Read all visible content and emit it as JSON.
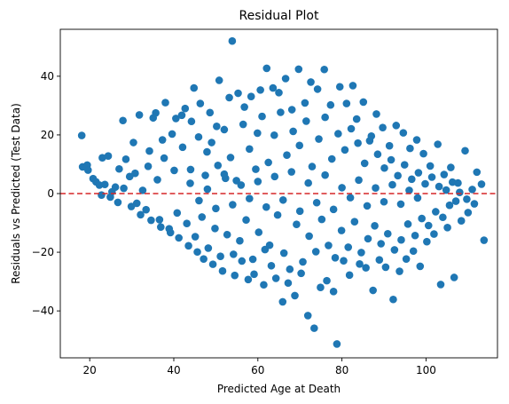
{
  "chart_data": {
    "type": "scatter",
    "title": "Residual Plot",
    "xlabel": "Predicted Age at Death",
    "ylabel": "Residuals vs Predicted (Test Data)",
    "xlim": [
      13,
      117
    ],
    "ylim": [
      -56,
      56
    ],
    "xticks": [
      20,
      40,
      60,
      80,
      100
    ],
    "yticks": [
      -40,
      -20,
      0,
      20,
      40
    ],
    "grid": false,
    "marker_color": "#1f77b4",
    "reference_line": {
      "y": 0,
      "color": "#d62728",
      "style": "dashed"
    },
    "series": [
      {
        "points": [
          [
            18.1,
            19.8
          ],
          [
            18.3,
            9.1
          ],
          [
            19.4,
            9.7
          ],
          [
            19.6,
            8.0
          ],
          [
            20.8,
            5.1
          ],
          [
            21.5,
            4.0
          ],
          [
            22.3,
            2.9
          ],
          [
            23.0,
            12.2
          ],
          [
            23.6,
            3.1
          ],
          [
            24.4,
            12.8
          ],
          [
            25.3,
            0.6
          ],
          [
            26.1,
            2.2
          ],
          [
            27.0,
            8.4
          ],
          [
            27.9,
            24.9
          ],
          [
            28.6,
            11.7
          ],
          [
            29.5,
            5.8
          ],
          [
            30.4,
            17.4
          ],
          [
            31.2,
            -3.3
          ],
          [
            31.8,
            26.8
          ],
          [
            32.6,
            1.1
          ],
          [
            33.4,
            -5.5
          ],
          [
            34.2,
            14.5
          ],
          [
            35.1,
            25.8
          ],
          [
            35.7,
            27.5
          ],
          [
            36.6,
            -8.9
          ],
          [
            37.3,
            18.3
          ],
          [
            38.0,
            31.0
          ],
          [
            38.9,
            -12.0
          ],
          [
            39.6,
            20.3
          ],
          [
            40.5,
            25.6
          ],
          [
            41.2,
            -15.1
          ],
          [
            41.9,
            26.7
          ],
          [
            42.7,
            29.0
          ],
          [
            43.5,
            -17.8
          ],
          [
            44.2,
            24.6
          ],
          [
            44.8,
            36.0
          ],
          [
            45.6,
            -19.9
          ],
          [
            46.3,
            30.7
          ],
          [
            47.1,
            -22.3
          ],
          [
            47.9,
            14.2
          ],
          [
            48.6,
            27.6
          ],
          [
            49.3,
            -24.1
          ],
          [
            50.2,
            22.9
          ],
          [
            50.8,
            38.6
          ],
          [
            51.6,
            -26.4
          ],
          [
            52.3,
            5.2
          ],
          [
            53.2,
            32.7
          ],
          [
            53.9,
            52.0
          ],
          [
            54.5,
            -27.9
          ],
          [
            55.3,
            34.2
          ],
          [
            56.2,
            -23.0
          ],
          [
            56.8,
            29.5
          ],
          [
            57.7,
            -29.3
          ],
          [
            58.4,
            33.1
          ],
          [
            59.1,
            -27.5
          ],
          [
            59.9,
            20.6
          ],
          [
            60.6,
            35.3
          ],
          [
            61.4,
            -31.1
          ],
          [
            62.1,
            42.7
          ],
          [
            62.8,
            -17.6
          ],
          [
            63.6,
            36.0
          ],
          [
            64.3,
            -28.9
          ],
          [
            65.0,
            34.4
          ],
          [
            65.9,
            -36.9
          ],
          [
            66.6,
            39.2
          ],
          [
            67.2,
            -30.5
          ],
          [
            68.1,
            28.6
          ],
          [
            68.8,
            -34.8
          ],
          [
            69.7,
            42.4
          ],
          [
            70.3,
            -27.2
          ],
          [
            71.2,
            30.9
          ],
          [
            71.9,
            -41.6
          ],
          [
            72.6,
            38.0
          ],
          [
            73.4,
            -45.9
          ],
          [
            74.2,
            35.6
          ],
          [
            74.9,
            -32.0
          ],
          [
            75.8,
            42.3
          ],
          [
            76.4,
            -29.7
          ],
          [
            77.3,
            30.2
          ],
          [
            78.0,
            -33.4
          ],
          [
            78.8,
            -51.3
          ],
          [
            79.5,
            36.4
          ],
          [
            80.4,
            -22.9
          ],
          [
            81.1,
            30.7
          ],
          [
            81.8,
            -27.8
          ],
          [
            82.6,
            36.8
          ],
          [
            83.5,
            25.4
          ],
          [
            84.2,
            -24.0
          ],
          [
            85.1,
            31.2
          ],
          [
            85.7,
            -25.3
          ],
          [
            86.6,
            18.0
          ],
          [
            87.4,
            -33.0
          ],
          [
            88.2,
            27.1
          ],
          [
            88.9,
            -22.6
          ],
          [
            89.7,
            22.5
          ],
          [
            90.4,
            -25.1
          ],
          [
            91.3,
            16.3
          ],
          [
            92.2,
            -36.1
          ],
          [
            92.9,
            23.2
          ],
          [
            93.7,
            -26.5
          ],
          [
            94.6,
            20.7
          ],
          [
            95.3,
            -22.3
          ],
          [
            96.2,
            15.4
          ],
          [
            97.0,
            -19.6
          ],
          [
            97.8,
            18.3
          ],
          [
            98.6,
            -24.8
          ],
          [
            99.4,
            13.6
          ],
          [
            100.2,
            -16.4
          ],
          [
            101.0,
            9.4
          ],
          [
            101.9,
            -13.8
          ],
          [
            102.8,
            16.8
          ],
          [
            103.5,
            -31.0
          ],
          [
            104.3,
            6.5
          ],
          [
            105.1,
            -11.6
          ],
          [
            105.9,
            8.9
          ],
          [
            106.7,
            -28.6
          ],
          [
            107.6,
            3.6
          ],
          [
            108.4,
            -9.3
          ],
          [
            109.3,
            14.6
          ],
          [
            110.0,
            -6.5
          ],
          [
            111.0,
            1.4
          ],
          [
            112.1,
            7.3
          ],
          [
            113.2,
            3.2
          ],
          [
            113.8,
            -15.9
          ],
          [
            22.8,
            -0.5
          ],
          [
            24.9,
            -1.2
          ],
          [
            26.7,
            -3.0
          ],
          [
            28.1,
            1.8
          ],
          [
            29.9,
            -4.4
          ],
          [
            30.8,
            6.9
          ],
          [
            32.1,
            -7.2
          ],
          [
            33.9,
            9.3
          ],
          [
            34.6,
            -9.1
          ],
          [
            36.1,
            4.7
          ],
          [
            36.9,
            -11.4
          ],
          [
            37.7,
            12.1
          ],
          [
            39.2,
            -13.3
          ],
          [
            40.1,
            7.9
          ],
          [
            40.8,
            -6.6
          ],
          [
            42.1,
            15.8
          ],
          [
            43.1,
            -10.2
          ],
          [
            43.9,
            3.5
          ],
          [
            45.1,
            -14.7
          ],
          [
            45.9,
            19.3
          ],
          [
            46.7,
            -8.0
          ],
          [
            47.5,
            6.2
          ],
          [
            48.2,
            -18.6
          ],
          [
            49.0,
            17.4
          ],
          [
            49.8,
            -11.9
          ],
          [
            50.5,
            9.6
          ],
          [
            51.1,
            -21.4
          ],
          [
            52.0,
            21.8
          ],
          [
            52.7,
            -14.0
          ],
          [
            53.5,
            12.3
          ],
          [
            54.2,
            -20.7
          ],
          [
            54.9,
            4.4
          ],
          [
            55.7,
            -16.1
          ],
          [
            56.5,
            23.6
          ],
          [
            57.2,
            -9.0
          ],
          [
            58.0,
            15.2
          ],
          [
            58.8,
            -22.4
          ],
          [
            59.5,
            8.3
          ],
          [
            60.2,
            -13.2
          ],
          [
            61.0,
            26.3
          ],
          [
            61.7,
            -19.1
          ],
          [
            62.5,
            10.6
          ],
          [
            63.2,
            -24.6
          ],
          [
            63.9,
            19.9
          ],
          [
            64.7,
            -7.3
          ],
          [
            65.4,
            27.7
          ],
          [
            66.2,
            -20.3
          ],
          [
            66.9,
            13.1
          ],
          [
            67.6,
            -25.8
          ],
          [
            68.4,
            21.2
          ],
          [
            69.2,
            -10.5
          ],
          [
            69.9,
            16.4
          ],
          [
            70.7,
            -23.3
          ],
          [
            71.5,
            24.7
          ],
          [
            72.2,
            -14.5
          ],
          [
            72.9,
            9.2
          ],
          [
            73.8,
            -19.8
          ],
          [
            74.5,
            18.6
          ],
          [
            75.2,
            -8.8
          ],
          [
            76.0,
            26.0
          ],
          [
            76.8,
            -17.7
          ],
          [
            77.6,
            11.8
          ],
          [
            78.4,
            -21.9
          ],
          [
            79.1,
            20.4
          ],
          [
            79.9,
            -12.6
          ],
          [
            80.7,
            14.9
          ],
          [
            81.5,
            -18.3
          ],
          [
            82.2,
            22.1
          ],
          [
            83.0,
            -9.6
          ],
          [
            83.8,
            17.2
          ],
          [
            84.6,
            -20.1
          ],
          [
            85.4,
            10.3
          ],
          [
            86.2,
            -15.4
          ],
          [
            87.0,
            19.6
          ],
          [
            87.8,
            -11.0
          ],
          [
            88.5,
            13.4
          ],
          [
            89.3,
            -17.1
          ],
          [
            90.1,
            8.7
          ],
          [
            90.9,
            -13.7
          ],
          [
            91.7,
            11.5
          ],
          [
            92.5,
            -19.2
          ],
          [
            93.3,
            6.1
          ],
          [
            94.1,
            -15.8
          ],
          [
            94.9,
            9.8
          ],
          [
            95.7,
            -10.4
          ],
          [
            96.6,
            4.9
          ],
          [
            97.4,
            -14.3
          ],
          [
            98.2,
            7.1
          ],
          [
            99.0,
            -8.5
          ],
          [
            99.8,
            3.3
          ],
          [
            100.6,
            -10.9
          ],
          [
            101.4,
            5.6
          ],
          [
            102.3,
            -6.2
          ],
          [
            103.1,
            2.4
          ],
          [
            104.0,
            -8.1
          ],
          [
            104.8,
            1.2
          ],
          [
            105.6,
            -4.0
          ],
          [
            106.3,
            3.9
          ],
          [
            107.1,
            -2.6
          ],
          [
            108.0,
            0.4
          ],
          [
            109.7,
            -1.9
          ],
          [
            111.5,
            -3.5
          ],
          [
            44.0,
            8.2
          ],
          [
            46.0,
            -2.4
          ],
          [
            48.0,
            1.5
          ],
          [
            50.0,
            -5.1
          ],
          [
            52.0,
            6.6
          ],
          [
            54.0,
            -3.8
          ],
          [
            56.0,
            2.9
          ],
          [
            58.0,
            -1.7
          ],
          [
            60.0,
            4.1
          ],
          [
            62.0,
            -4.6
          ],
          [
            64.0,
            5.8
          ],
          [
            66.0,
            -2.2
          ],
          [
            68.0,
            7.4
          ],
          [
            70.0,
            -6.0
          ],
          [
            72.0,
            3.6
          ],
          [
            74.0,
            -3.1
          ],
          [
            76.0,
            6.3
          ],
          [
            78.0,
            -5.4
          ],
          [
            80.0,
            2.0
          ],
          [
            82.0,
            -1.4
          ],
          [
            84.0,
            4.6
          ],
          [
            86.0,
            -4.2
          ],
          [
            88.0,
            1.9
          ],
          [
            90.0,
            -2.8
          ],
          [
            92.0,
            3.0
          ],
          [
            94.0,
            -3.6
          ],
          [
            96.0,
            1.1
          ],
          [
            98.0,
            -1.5
          ]
        ]
      }
    ]
  }
}
